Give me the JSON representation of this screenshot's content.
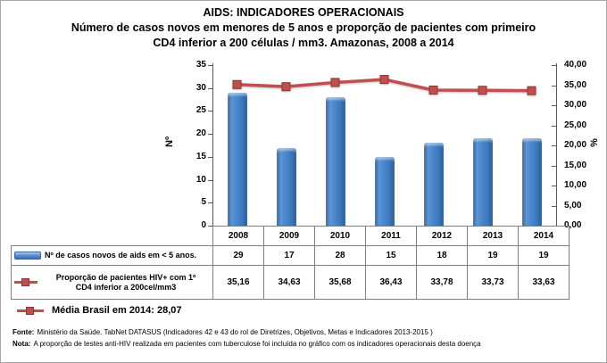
{
  "title": {
    "line1": "AIDS: INDICADORES OPERACIONAIS",
    "line2": "Número de casos novos em menores de 5 anos e proporção de pacientes com primeiro",
    "line3": "CD4 inferior a 200 células / mm3. Amazonas, 2008 a 2014"
  },
  "chart_data": {
    "type": "combo-bar-line",
    "categories": [
      "2008",
      "2009",
      "2010",
      "2011",
      "2012",
      "2013",
      "2014"
    ],
    "series": [
      {
        "name": "Nº de casos novos de aids em < 5 anos.",
        "type": "bar",
        "axis": "left",
        "color": "#4f81bd",
        "values": [
          29,
          17,
          28,
          15,
          18,
          19,
          19
        ],
        "labels": [
          "29",
          "17",
          "28",
          "15",
          "18",
          "19",
          "19"
        ]
      },
      {
        "name": "Proporção de pacientes HIV+ com 1º CD4 inferior a 200cel/mm3",
        "name_lines": [
          "Proporção de pacientes HIV+ com 1º",
          "CD4 inferior a 200cel/mm3"
        ],
        "type": "line",
        "axis": "right",
        "color": "#c0504d",
        "values": [
          35.16,
          34.63,
          35.68,
          36.43,
          33.78,
          33.73,
          33.63
        ],
        "labels": [
          "35,16",
          "34,63",
          "35,68",
          "36,43",
          "33,78",
          "33,73",
          "33,63"
        ]
      }
    ],
    "left_axis": {
      "title": "Nº",
      "min": 0,
      "max": 35,
      "step": 5,
      "tick_labels": [
        "0",
        "5",
        "10",
        "15",
        "20",
        "25",
        "30",
        "35"
      ]
    },
    "right_axis": {
      "title": "%",
      "min": 0,
      "max": 40,
      "step": 5,
      "tick_labels": [
        "0,00",
        "5,00",
        "10,00",
        "15,00",
        "20,00",
        "25,00",
        "30,00",
        "35,00",
        "40,00"
      ]
    },
    "grid": false,
    "legend_position": "data-table-left"
  },
  "annotation": {
    "icon": "line-marker-icon",
    "color": "#c0504d",
    "text": "Média Brasil em 2014: 28,07"
  },
  "footnotes": {
    "fonte_label": "Fonte:",
    "fonte_text": "Ministério da Saúde. TabNet DATASUS (Indicadores 42 e 43 do rol de Diretrizes, Objetivos, Metas e Indicadores 2013-2015 )",
    "nota_label": "Nota:",
    "nota_text": "A proporção de testes anti-HIV realizada em pacientes com tuberculose foi incluída no gráfico com os indicadores operacionais desta doença"
  }
}
